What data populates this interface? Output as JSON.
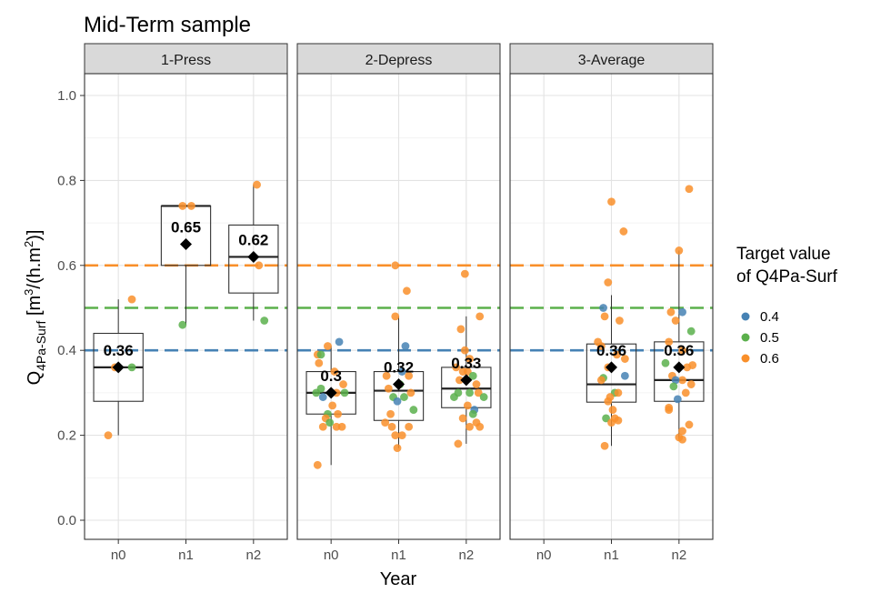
{
  "chart_data": {
    "type": "box",
    "title": "Mid-Term sample",
    "xlabel": "Year",
    "ylabel": {
      "main": "Q",
      "sub": "4Pa-Surf",
      "unit_pre": " [m",
      "sup1": "3",
      "unit_mid": "/(h.m",
      "sup2": "2",
      "unit_post": ")]"
    },
    "ylim": [
      -0.05,
      1.12
    ],
    "yticks": [
      "0.0",
      "0.2",
      "0.4",
      "0.6",
      "0.8",
      "1.0"
    ],
    "ytick_values": [
      0.0,
      0.2,
      0.4,
      0.6,
      0.8,
      1.0
    ],
    "categories": [
      "n0",
      "n1",
      "n2"
    ],
    "grid": true,
    "legend": {
      "title_lines": [
        "Target value",
        "of Q4Pa-Surf"
      ],
      "placement": "right",
      "items": [
        {
          "label": "0.4",
          "color": "#4682B4"
        },
        {
          "label": "0.5",
          "color": "#5BB04C"
        },
        {
          "label": "0.6",
          "color": "#F98F2A"
        }
      ]
    },
    "reference_lines": [
      {
        "value": 0.4,
        "color": "#4682B4"
      },
      {
        "value": 0.5,
        "color": "#5BB04C"
      },
      {
        "value": 0.6,
        "color": "#F98F2A"
      }
    ],
    "panels": [
      {
        "name": "1-Press",
        "boxes": [
          {
            "category": "n0",
            "min": 0.2,
            "q1": 0.28,
            "median": 0.36,
            "q3": 0.44,
            "max": 0.52,
            "mean": 0.36,
            "mean_label": "0.36",
            "points": [
              {
                "dx": -0.05,
                "y": 0.36,
                "group": "0.6"
              },
              {
                "dx": 0.2,
                "y": 0.36,
                "group": "0.5"
              },
              {
                "dx": 0.2,
                "y": 0.52,
                "group": "0.6"
              },
              {
                "dx": -0.15,
                "y": 0.2,
                "group": "0.6"
              }
            ]
          },
          {
            "category": "n1",
            "min": 0.46,
            "q1": 0.6,
            "median": 0.74,
            "q3": 0.74,
            "max": 0.74,
            "mean": 0.65,
            "mean_label": "0.65",
            "points": [
              {
                "dx": -0.05,
                "y": 0.74,
                "group": "0.6"
              },
              {
                "dx": 0.08,
                "y": 0.74,
                "group": "0.6"
              },
              {
                "dx": -0.05,
                "y": 0.46,
                "group": "0.5"
              }
            ]
          },
          {
            "category": "n2",
            "min": 0.47,
            "q1": 0.535,
            "median": 0.62,
            "q3": 0.695,
            "max": 0.79,
            "mean": 0.62,
            "mean_label": "0.62",
            "points": [
              {
                "dx": 0.05,
                "y": 0.79,
                "group": "0.6"
              },
              {
                "dx": 0.08,
                "y": 0.6,
                "group": "0.6"
              },
              {
                "dx": 0.16,
                "y": 0.47,
                "group": "0.5"
              }
            ]
          }
        ]
      },
      {
        "name": "2-Depress",
        "boxes": [
          {
            "category": "n0",
            "min": 0.13,
            "q1": 0.25,
            "median": 0.3,
            "q3": 0.35,
            "max": 0.41,
            "mean": 0.3,
            "mean_label": "0.3",
            "points": [
              {
                "dx": 0.12,
                "y": 0.42,
                "group": "0.4"
              },
              {
                "dx": -0.05,
                "y": 0.41,
                "group": "0.6"
              },
              {
                "dx": -0.2,
                "y": 0.39,
                "group": "0.6"
              },
              {
                "dx": -0.15,
                "y": 0.39,
                "group": "0.5"
              },
              {
                "dx": -0.18,
                "y": 0.37,
                "group": "0.6"
              },
              {
                "dx": 0.05,
                "y": 0.35,
                "group": "0.6"
              },
              {
                "dx": 0.18,
                "y": 0.32,
                "group": "0.6"
              },
              {
                "dx": -0.22,
                "y": 0.3,
                "group": "0.5"
              },
              {
                "dx": -0.12,
                "y": 0.29,
                "group": "0.4"
              },
              {
                "dx": -0.15,
                "y": 0.31,
                "group": "0.5"
              },
              {
                "dx": 0.08,
                "y": 0.3,
                "group": "0.6"
              },
              {
                "dx": 0.2,
                "y": 0.3,
                "group": "0.5"
              },
              {
                "dx": 0.02,
                "y": 0.27,
                "group": "0.6"
              },
              {
                "dx": -0.05,
                "y": 0.25,
                "group": "0.5"
              },
              {
                "dx": 0.1,
                "y": 0.25,
                "group": "0.6"
              },
              {
                "dx": -0.08,
                "y": 0.24,
                "group": "0.6"
              },
              {
                "dx": -0.02,
                "y": 0.23,
                "group": "0.5"
              },
              {
                "dx": 0.08,
                "y": 0.22,
                "group": "0.6"
              },
              {
                "dx": 0.16,
                "y": 0.22,
                "group": "0.6"
              },
              {
                "dx": -0.12,
                "y": 0.22,
                "group": "0.6"
              },
              {
                "dx": -0.2,
                "y": 0.13,
                "group": "0.6"
              }
            ]
          },
          {
            "category": "n1",
            "min": 0.17,
            "q1": 0.235,
            "median": 0.305,
            "q3": 0.35,
            "max": 0.48,
            "mean": 0.32,
            "mean_label": "0.32",
            "points": [
              {
                "dx": -0.05,
                "y": 0.6,
                "group": "0.6"
              },
              {
                "dx": 0.12,
                "y": 0.54,
                "group": "0.6"
              },
              {
                "dx": -0.05,
                "y": 0.48,
                "group": "0.6"
              },
              {
                "dx": 0.1,
                "y": 0.41,
                "group": "0.4"
              },
              {
                "dx": -0.18,
                "y": 0.34,
                "group": "0.6"
              },
              {
                "dx": 0.05,
                "y": 0.35,
                "group": "0.4"
              },
              {
                "dx": 0.15,
                "y": 0.34,
                "group": "0.6"
              },
              {
                "dx": 0.02,
                "y": 0.32,
                "group": "0.5"
              },
              {
                "dx": -0.15,
                "y": 0.31,
                "group": "0.6"
              },
              {
                "dx": 0.18,
                "y": 0.3,
                "group": "0.6"
              },
              {
                "dx": -0.08,
                "y": 0.29,
                "group": "0.5"
              },
              {
                "dx": 0.08,
                "y": 0.29,
                "group": "0.5"
              },
              {
                "dx": -0.02,
                "y": 0.28,
                "group": "0.4"
              },
              {
                "dx": 0.22,
                "y": 0.26,
                "group": "0.5"
              },
              {
                "dx": -0.12,
                "y": 0.25,
                "group": "0.6"
              },
              {
                "dx": -0.2,
                "y": 0.23,
                "group": "0.6"
              },
              {
                "dx": -0.1,
                "y": 0.22,
                "group": "0.6"
              },
              {
                "dx": 0.15,
                "y": 0.22,
                "group": "0.6"
              },
              {
                "dx": -0.05,
                "y": 0.2,
                "group": "0.6"
              },
              {
                "dx": 0.05,
                "y": 0.2,
                "group": "0.6"
              },
              {
                "dx": -0.02,
                "y": 0.17,
                "group": "0.6"
              }
            ]
          },
          {
            "category": "n2",
            "min": 0.18,
            "q1": 0.265,
            "median": 0.31,
            "q3": 0.36,
            "max": 0.48,
            "mean": 0.33,
            "mean_label": "0.33",
            "points": [
              {
                "dx": -0.02,
                "y": 0.58,
                "group": "0.6"
              },
              {
                "dx": 0.2,
                "y": 0.48,
                "group": "0.6"
              },
              {
                "dx": -0.08,
                "y": 0.45,
                "group": "0.6"
              },
              {
                "dx": -0.02,
                "y": 0.4,
                "group": "0.6"
              },
              {
                "dx": 0.05,
                "y": 0.38,
                "group": "0.6"
              },
              {
                "dx": -0.15,
                "y": 0.36,
                "group": "0.6"
              },
              {
                "dx": -0.05,
                "y": 0.35,
                "group": "0.6"
              },
              {
                "dx": 0.02,
                "y": 0.35,
                "group": "0.6"
              },
              {
                "dx": 0.1,
                "y": 0.34,
                "group": "0.5"
              },
              {
                "dx": -0.1,
                "y": 0.33,
                "group": "0.6"
              },
              {
                "dx": 0.15,
                "y": 0.32,
                "group": "0.6"
              },
              {
                "dx": -0.12,
                "y": 0.3,
                "group": "0.5"
              },
              {
                "dx": 0.05,
                "y": 0.3,
                "group": "0.5"
              },
              {
                "dx": 0.18,
                "y": 0.3,
                "group": "0.6"
              },
              {
                "dx": -0.18,
                "y": 0.29,
                "group": "0.5"
              },
              {
                "dx": 0.26,
                "y": 0.29,
                "group": "0.5"
              },
              {
                "dx": 0.02,
                "y": 0.27,
                "group": "0.6"
              },
              {
                "dx": 0.12,
                "y": 0.26,
                "group": "0.4"
              },
              {
                "dx": 0.1,
                "y": 0.25,
                "group": "0.5"
              },
              {
                "dx": -0.05,
                "y": 0.24,
                "group": "0.6"
              },
              {
                "dx": 0.15,
                "y": 0.23,
                "group": "0.6"
              },
              {
                "dx": 0.05,
                "y": 0.22,
                "group": "0.6"
              },
              {
                "dx": 0.2,
                "y": 0.22,
                "group": "0.6"
              },
              {
                "dx": -0.12,
                "y": 0.18,
                "group": "0.6"
              }
            ]
          }
        ]
      },
      {
        "name": "3-Average",
        "boxes": [
          {
            "category": "n1",
            "min": 0.175,
            "q1": 0.278,
            "median": 0.32,
            "q3": 0.415,
            "max": 0.53,
            "mean": 0.36,
            "mean_label": "0.36",
            "points": [
              {
                "dx": 0.0,
                "y": 0.75,
                "group": "0.6"
              },
              {
                "dx": 0.18,
                "y": 0.68,
                "group": "0.6"
              },
              {
                "dx": -0.05,
                "y": 0.56,
                "group": "0.6"
              },
              {
                "dx": -0.12,
                "y": 0.5,
                "group": "0.4"
              },
              {
                "dx": -0.1,
                "y": 0.48,
                "group": "0.6"
              },
              {
                "dx": 0.12,
                "y": 0.47,
                "group": "0.6"
              },
              {
                "dx": -0.2,
                "y": 0.42,
                "group": "0.6"
              },
              {
                "dx": -0.15,
                "y": 0.41,
                "group": "0.6"
              },
              {
                "dx": 0.08,
                "y": 0.39,
                "group": "0.6"
              },
              {
                "dx": 0.2,
                "y": 0.38,
                "group": "0.6"
              },
              {
                "dx": -0.05,
                "y": 0.36,
                "group": "0.6"
              },
              {
                "dx": 0.2,
                "y": 0.34,
                "group": "0.4"
              },
              {
                "dx": -0.12,
                "y": 0.335,
                "group": "0.5"
              },
              {
                "dx": -0.15,
                "y": 0.33,
                "group": "0.6"
              },
              {
                "dx": 0.05,
                "y": 0.3,
                "group": "0.5"
              },
              {
                "dx": -0.02,
                "y": 0.29,
                "group": "0.6"
              },
              {
                "dx": 0.1,
                "y": 0.3,
                "group": "0.6"
              },
              {
                "dx": -0.05,
                "y": 0.28,
                "group": "0.6"
              },
              {
                "dx": 0.02,
                "y": 0.26,
                "group": "0.6"
              },
              {
                "dx": -0.08,
                "y": 0.24,
                "group": "0.5"
              },
              {
                "dx": 0.05,
                "y": 0.24,
                "group": "0.6"
              },
              {
                "dx": 0.1,
                "y": 0.235,
                "group": "0.6"
              },
              {
                "dx": 0.0,
                "y": 0.23,
                "group": "0.6"
              },
              {
                "dx": -0.1,
                "y": 0.175,
                "group": "0.6"
              }
            ]
          },
          {
            "category": "n2",
            "min": 0.19,
            "q1": 0.28,
            "median": 0.33,
            "q3": 0.42,
            "max": 0.635,
            "mean": 0.36,
            "mean_label": "0.36",
            "points": [
              {
                "dx": 0.15,
                "y": 0.78,
                "group": "0.6"
              },
              {
                "dx": 0.0,
                "y": 0.635,
                "group": "0.6"
              },
              {
                "dx": -0.12,
                "y": 0.49,
                "group": "0.6"
              },
              {
                "dx": 0.05,
                "y": 0.49,
                "group": "0.4"
              },
              {
                "dx": -0.05,
                "y": 0.47,
                "group": "0.6"
              },
              {
                "dx": 0.18,
                "y": 0.445,
                "group": "0.5"
              },
              {
                "dx": -0.15,
                "y": 0.42,
                "group": "0.6"
              },
              {
                "dx": 0.05,
                "y": 0.4,
                "group": "0.6"
              },
              {
                "dx": -0.2,
                "y": 0.37,
                "group": "0.5"
              },
              {
                "dx": 0.2,
                "y": 0.365,
                "group": "0.6"
              },
              {
                "dx": 0.12,
                "y": 0.36,
                "group": "0.6"
              },
              {
                "dx": -0.1,
                "y": 0.34,
                "group": "0.6"
              },
              {
                "dx": 0.05,
                "y": 0.33,
                "group": "0.6"
              },
              {
                "dx": -0.05,
                "y": 0.33,
                "group": "0.4"
              },
              {
                "dx": 0.18,
                "y": 0.32,
                "group": "0.6"
              },
              {
                "dx": -0.08,
                "y": 0.315,
                "group": "0.5"
              },
              {
                "dx": 0.1,
                "y": 0.3,
                "group": "0.6"
              },
              {
                "dx": -0.02,
                "y": 0.285,
                "group": "0.4"
              },
              {
                "dx": -0.15,
                "y": 0.265,
                "group": "0.6"
              },
              {
                "dx": -0.15,
                "y": 0.26,
                "group": "0.6"
              },
              {
                "dx": 0.15,
                "y": 0.225,
                "group": "0.6"
              },
              {
                "dx": 0.05,
                "y": 0.21,
                "group": "0.6"
              },
              {
                "dx": 0.0,
                "y": 0.195,
                "group": "0.6"
              },
              {
                "dx": 0.05,
                "y": 0.19,
                "group": "0.6"
              }
            ]
          }
        ]
      }
    ]
  }
}
